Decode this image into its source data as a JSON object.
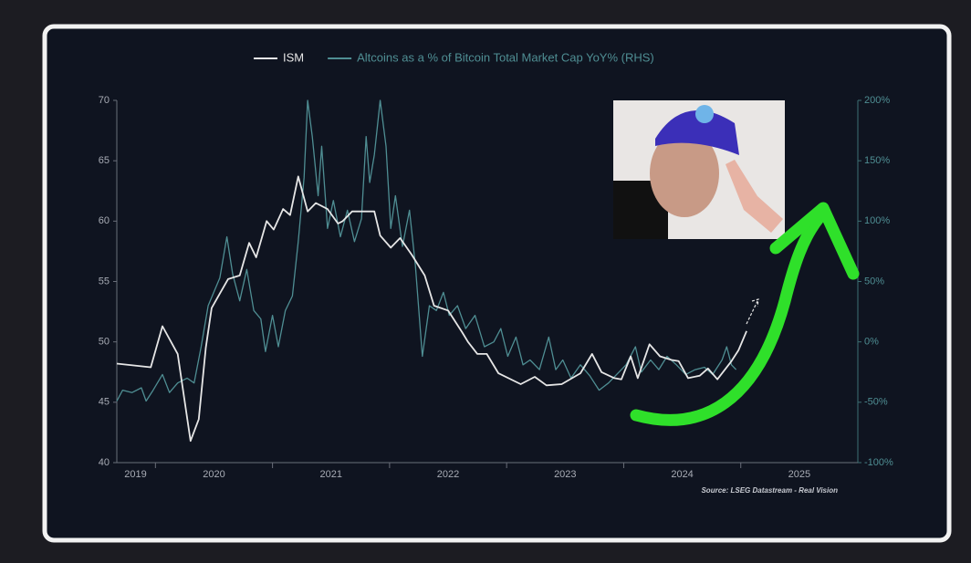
{
  "chart_data": {
    "type": "line",
    "source": "Source: LSEG Datastream - Real Vision",
    "xlim": [
      2019.67,
      2026
    ],
    "xticks": [
      {
        "value": 2019.83,
        "label": "2019"
      },
      {
        "value": 2020.5,
        "label": "2020"
      },
      {
        "value": 2021.5,
        "label": "2021"
      },
      {
        "value": 2022.5,
        "label": "2022"
      },
      {
        "value": 2023.5,
        "label": "2023"
      },
      {
        "value": 2024.5,
        "label": "2024"
      },
      {
        "value": 2025.5,
        "label": "2025"
      }
    ],
    "xticks_minor": [
      2020,
      2021,
      2022,
      2023,
      2024,
      2025
    ],
    "ylim": [
      40,
      70
    ],
    "yticks": [
      40,
      45,
      50,
      55,
      60,
      65,
      70
    ],
    "y2lim": [
      -100,
      200
    ],
    "y2ticks": [
      {
        "value": -100,
        "label": "-100%"
      },
      {
        "value": -50,
        "label": "-50%"
      },
      {
        "value": 0,
        "label": "0%"
      },
      {
        "value": 50,
        "label": "50%"
      },
      {
        "value": 100,
        "label": "100%"
      },
      {
        "value": 150,
        "label": "150%"
      },
      {
        "value": 200,
        "label": "200%"
      }
    ],
    "series": [
      {
        "name": "ISM",
        "color": "#e6e6e6",
        "x": [
          2019.67,
          2019.96,
          2020.06,
          2020.19,
          2020.3,
          2020.37,
          2020.43,
          2020.48,
          2020.55,
          2020.62,
          2020.72,
          2020.8,
          2020.86,
          2020.95,
          2021.01,
          2021.09,
          2021.15,
          2021.22,
          2021.3,
          2021.37,
          2021.47,
          2021.56,
          2021.6,
          2021.68,
          2021.87,
          2021.92,
          2022.01,
          2022.09,
          2022.19,
          2022.3,
          2022.38,
          2022.5,
          2022.62,
          2022.67,
          2022.75,
          2022.83,
          2022.93,
          2023.12,
          2023.24,
          2023.34,
          2023.47,
          2023.63,
          2023.73,
          2023.81,
          2023.92,
          2023.98,
          2024.06,
          2024.12,
          2024.22,
          2024.31,
          2024.41,
          2024.47,
          2024.55,
          2024.65,
          2024.72,
          2024.8,
          2024.92,
          2024.98,
          2025.05
        ],
        "values": [
          48.2,
          47.9,
          51.3,
          49,
          41.8,
          43.6,
          49.5,
          52.8,
          54,
          55.2,
          55.5,
          58.2,
          57,
          60,
          59.3,
          61,
          60.5,
          63.7,
          60.8,
          61.5,
          61,
          59.8,
          60,
          60.8,
          60.8,
          58.8,
          57.8,
          58.6,
          57.2,
          55.5,
          53,
          52.6,
          50.8,
          50,
          49,
          49,
          47.4,
          46.5,
          47.1,
          46.4,
          46.5,
          47.4,
          49,
          47.5,
          47,
          46.9,
          48.8,
          47,
          49.8,
          48.8,
          48.5,
          48.4,
          47,
          47.2,
          47.8,
          46.9,
          48.4,
          49.3,
          50.9
        ]
      },
      {
        "name": "Altcoins as a % of Bitcoin Total Market Cap YoY% (RHS)",
        "color": "#4f8e93",
        "axis": "y2",
        "x": [
          2019.67,
          2019.72,
          2019.8,
          2019.88,
          2019.92,
          2019.98,
          2020.06,
          2020.12,
          2020.19,
          2020.27,
          2020.33,
          2020.39,
          2020.45,
          2020.55,
          2020.61,
          2020.66,
          2020.72,
          2020.78,
          2020.84,
          2020.9,
          2020.94,
          2021.0,
          2021.05,
          2021.11,
          2021.17,
          2021.22,
          2021.27,
          2021.3,
          2021.34,
          2021.39,
          2021.42,
          2021.47,
          2021.52,
          2021.58,
          2021.64,
          2021.7,
          2021.76,
          2021.8,
          2021.83,
          2021.87,
          2021.92,
          2021.97,
          2022.01,
          2022.05,
          2022.11,
          2022.17,
          2022.22,
          2022.28,
          2022.34,
          2022.4,
          2022.46,
          2022.51,
          2022.58,
          2022.65,
          2022.73,
          2022.81,
          2022.89,
          2022.95,
          2023.01,
          2023.08,
          2023.14,
          2023.2,
          2023.28,
          2023.36,
          2023.42,
          2023.48,
          2023.55,
          2023.63,
          2023.71,
          2023.79,
          2023.87,
          2023.94,
          2024.02,
          2024.1,
          2024.15,
          2024.23,
          2024.3,
          2024.37,
          2024.45,
          2024.53,
          2024.61,
          2024.69,
          2024.76,
          2024.84,
          2024.88,
          2024.92,
          2024.96
        ],
        "values": [
          -49,
          -40,
          -42,
          -38,
          -49,
          -40,
          -27,
          -42,
          -34,
          -30,
          -34,
          -4,
          30,
          53,
          87,
          56,
          34,
          60,
          26,
          19,
          -8,
          22,
          -4,
          26,
          38,
          83,
          136,
          200,
          170,
          121,
          162,
          94,
          117,
          87,
          109,
          83,
          102,
          170,
          132,
          155,
          200,
          162,
          94,
          121,
          79,
          109,
          64,
          -12,
          30,
          26,
          41,
          22,
          30,
          11,
          22,
          -4,
          0,
          11,
          -12,
          4,
          -19,
          -15,
          -23,
          4,
          -23,
          -15,
          -30,
          -19,
          -28,
          -40,
          -34,
          -27,
          -19,
          -4,
          -25,
          -15,
          -23,
          -12,
          -19,
          -27,
          -23,
          -21,
          -27,
          -15,
          -4,
          -19,
          -23
        ]
      }
    ]
  }
}
